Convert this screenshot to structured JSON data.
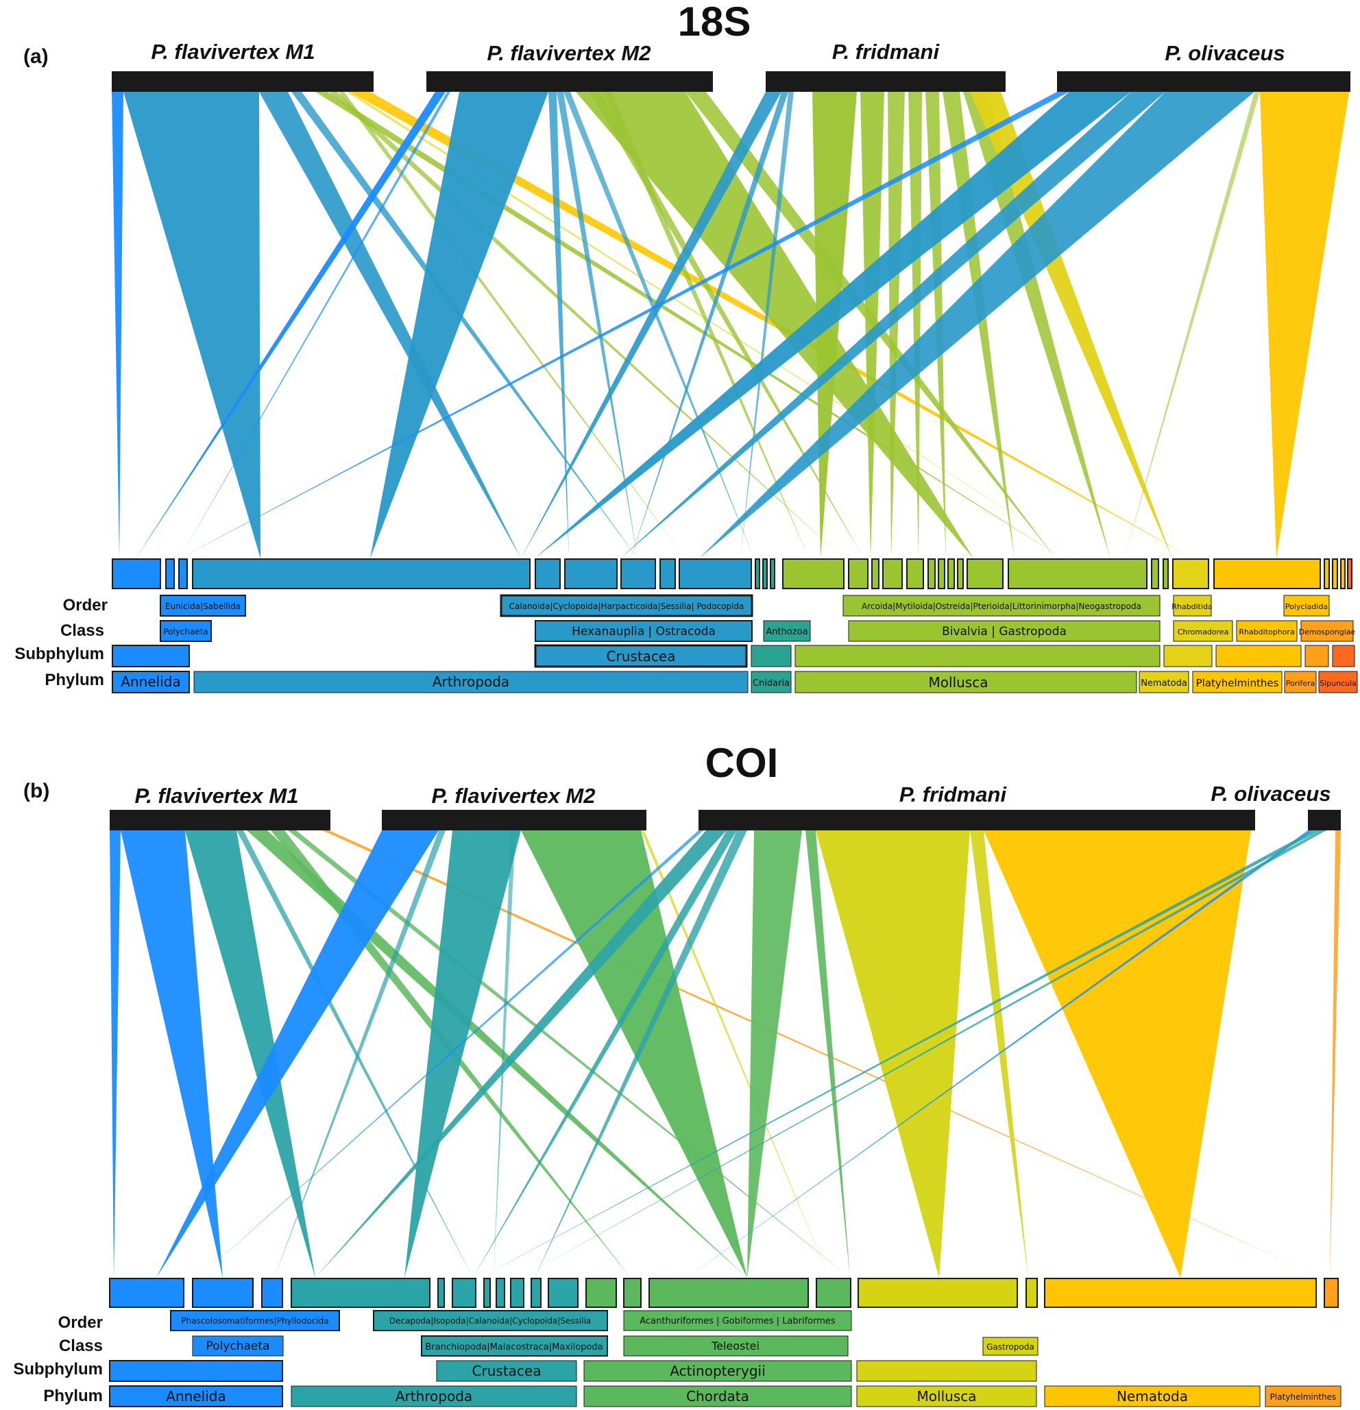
{
  "figure": {
    "panel_a": {
      "label": "(a)",
      "title": "18S",
      "predators": [
        "P. flavivertex M1",
        "P. flavivertex M2",
        "P. fridmani",
        "P. olivaceus"
      ],
      "ranks": [
        "Order",
        "Class",
        "Subphylum",
        "Phylum"
      ],
      "taxa": {
        "order": [
          "Eunicida|Sabellida",
          "Calanoida|Cyclopoida|Harpacticoida|Sessilia| Podocopida",
          "Arcoida|Mytiloida|Ostreida|Pterioida|Littorinimorpha|Neogastropoda",
          "Rhabditida",
          "Polycladida"
        ],
        "class": [
          "Polychaeta",
          "Hexanauplia      |    Ostracoda",
          "Anthozoa",
          "Bivalvia     |                  Gastropoda",
          "Chromadorea",
          "Rhabditophora",
          "Demospongiae"
        ],
        "subphylum": [
          "Crustacea"
        ],
        "phylum": [
          "Annelida",
          "Arthropoda",
          "Cnidaria",
          "Mollusca",
          "Nematoda",
          "Platyhelminthes",
          "Porifera",
          "Sipuncula"
        ]
      }
    },
    "panel_b": {
      "label": "(b)",
      "title": "COI",
      "predators": [
        "P. flavivertex M1",
        "P. flavivertex M2",
        "P. fridmani",
        "P. olivaceus"
      ],
      "ranks": [
        "Order",
        "Class",
        "Subphylum",
        "Phylum"
      ],
      "taxa": {
        "order": [
          "Phascolosomatiformes|Phyllodocida",
          "Decapoda|Isopoda|Calanoida|Cyclopoida|Sessilia",
          "Acanthuriformes   |   Gobiformes   |   Labriformes"
        ],
        "class": [
          "Polychaeta",
          "Branchiopoda|Malacostraca|Maxilopoda",
          "Teleostei",
          "Gastropoda"
        ],
        "subphylum": [
          "Crustacea",
          "Actinopterygii"
        ],
        "phylum": [
          "Annelida",
          "Arthropoda",
          "Chordata",
          "Mollusca",
          "Nematoda",
          "Platyhelminthes"
        ]
      }
    },
    "colors": {
      "annelida": "#1a8cff",
      "arthropoda": "#2899c9",
      "arthropoda_coi": "#2ca3a6",
      "cnidaria": "#2aa390",
      "chordata": "#5cb85c",
      "mollusca": "#9bc431",
      "mollusca_coi": "#d4d415",
      "nematoda": "#e3d218",
      "platyhelminthes": "#ffc600",
      "porifera": "#ff9f1a",
      "sipuncula": "#ff6820",
      "predator_bar": "#1a1a1a"
    }
  }
}
